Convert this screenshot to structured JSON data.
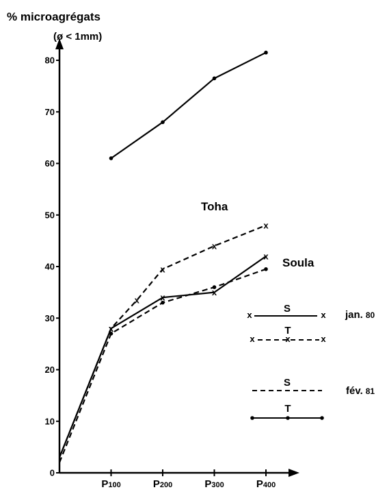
{
  "chart_data": {
    "type": "line",
    "ylabel": "% microagrégats",
    "ylabel_unit": "(ø < 1mm)",
    "yticks": [
      "0",
      "10",
      "20",
      "30",
      "40",
      "50",
      "60",
      "70",
      "80"
    ],
    "ylim": [
      0,
      85
    ],
    "categories": [
      "P100",
      "P200",
      "P300",
      "P400"
    ],
    "x_prefix": "P",
    "x_numbers": [
      "100",
      "200",
      "300",
      "400"
    ],
    "annotations": {
      "toha": "Toha",
      "soula": "Soula"
    },
    "legend": {
      "placement": "right",
      "groups": [
        {
          "label": "jan. 80",
          "label_main": "jan.",
          "label_year": "80",
          "entries": [
            {
              "letter": "S",
              "style": "solid-x"
            },
            {
              "letter": "T",
              "style": "dashed-x"
            }
          ]
        },
        {
          "label": "fév. 81",
          "label_main": "fév.",
          "label_year": "81",
          "entries": [
            {
              "letter": "S",
              "style": "dashed-dot"
            },
            {
              "letter": "T",
              "style": "solid-dot"
            }
          ]
        }
      ]
    },
    "series": [
      {
        "id": "toha-feb81",
        "style": "solid-dot",
        "points": [
          {
            "x": "P100",
            "y": 61
          },
          {
            "x": "P200",
            "y": 68
          },
          {
            "x": "P300",
            "y": 76.5
          },
          {
            "x": "P400",
            "y": 81.5
          }
        ]
      },
      {
        "id": "toha-jan80",
        "style": "dashed-x",
        "points": [
          {
            "x": 0,
            "y": 3
          },
          {
            "x": "P100",
            "y": 28
          },
          {
            "x": 1.5,
            "y": 33.5
          },
          {
            "x": "P200",
            "y": 39.5
          },
          {
            "x": "P300",
            "y": 44
          },
          {
            "x": "P400",
            "y": 48
          }
        ]
      },
      {
        "id": "soula-jan80",
        "style": "solid-x",
        "points": [
          {
            "x": 0,
            "y": 3
          },
          {
            "x": "P100",
            "y": 28
          },
          {
            "x": "P200",
            "y": 34
          },
          {
            "x": "P300",
            "y": 35
          },
          {
            "x": "P400",
            "y": 42
          }
        ]
      },
      {
        "id": "soula-feb81",
        "style": "dashed-dot",
        "points": [
          {
            "x": 0,
            "y": 2
          },
          {
            "x": "P100",
            "y": 27
          },
          {
            "x": "P200",
            "y": 33
          },
          {
            "x": "P300",
            "y": 36
          },
          {
            "x": "P400",
            "y": 39.5
          }
        ]
      }
    ]
  }
}
